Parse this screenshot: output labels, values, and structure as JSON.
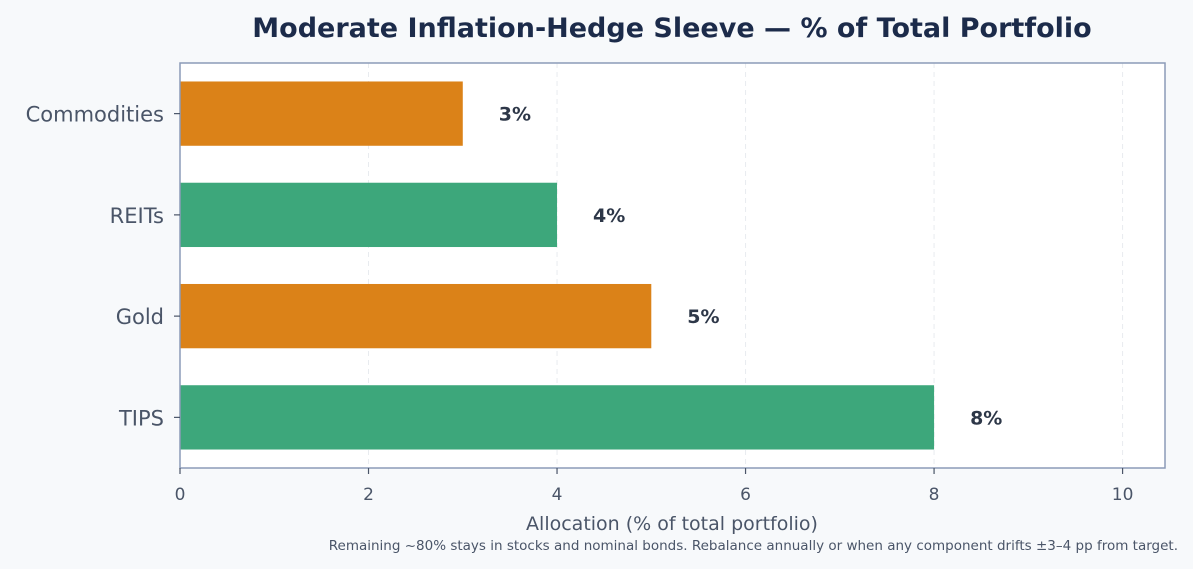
{
  "chart_data": {
    "type": "bar",
    "orientation": "horizontal",
    "title": "Moderate Inflation-Hedge Sleeve — % of Total Portfolio",
    "xlabel": "Allocation (% of total portfolio)",
    "ylabel": "",
    "categories": [
      "Commodities",
      "REITs",
      "Gold",
      "TIPS"
    ],
    "values": [
      3,
      4,
      5,
      8
    ],
    "data_labels": [
      "3%",
      "4%",
      "5%",
      "8%"
    ],
    "bar_colors": [
      "#db8218",
      "#3da77b",
      "#db8218",
      "#3da77b"
    ],
    "xlim": [
      0,
      10.45
    ],
    "xticks": [
      0,
      2,
      4,
      6,
      8,
      10
    ],
    "grid": "x, dashed",
    "legend": "none",
    "footnote": "Remaining ~80% stays in stocks and nominal bonds. Rebalance annually or when any component drifts ±3–4 pp from target."
  }
}
